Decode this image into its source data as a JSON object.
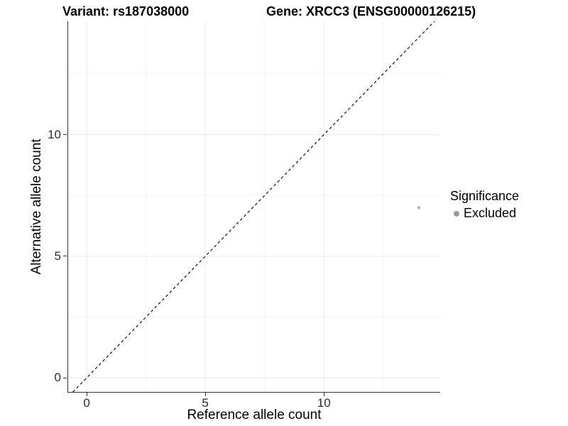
{
  "titles": {
    "variant": "Variant: rs187038000",
    "gene": "Gene: XRCC3 (ENSG00000126215)"
  },
  "chart_data": {
    "type": "scatter",
    "title_left": "Variant: rs187038000",
    "title_right": "Gene: XRCC3 (ENSG00000126215)",
    "xlabel": "Reference allele count",
    "ylabel": "Alternative allele count",
    "xlim": [
      -0.78,
      14.9
    ],
    "ylim": [
      -0.58,
      14.66
    ],
    "x_ticks": [
      0,
      5,
      10
    ],
    "y_ticks": [
      0,
      5,
      10
    ],
    "x_grid_major": [
      0,
      5,
      10
    ],
    "x_grid_minor": [
      2.5,
      7.5,
      12.5
    ],
    "y_grid_major": [
      0,
      5,
      10
    ],
    "y_grid_minor": [
      2.5,
      7.5,
      12.5
    ],
    "grid": true,
    "reference_line": {
      "type": "identity",
      "slope": 1,
      "intercept": 0,
      "style": "dashed",
      "color": "#111111"
    },
    "series": [
      {
        "name": "Excluded",
        "color": "#b5b5b5",
        "point_radius": 2.3,
        "points": [
          {
            "x": 14,
            "y": 7
          }
        ]
      }
    ],
    "legend": {
      "title": "Significance",
      "position": "right",
      "items": [
        {
          "label": "Excluded",
          "color": "#9a9a9a"
        }
      ]
    }
  },
  "colors": {
    "background": "#ffffff",
    "axis_line": "#333333",
    "grid_major": "#e7e7e7",
    "grid_minor": "#f2f2f2",
    "tick_label": "#2b2b2b",
    "text": "#000000"
  }
}
